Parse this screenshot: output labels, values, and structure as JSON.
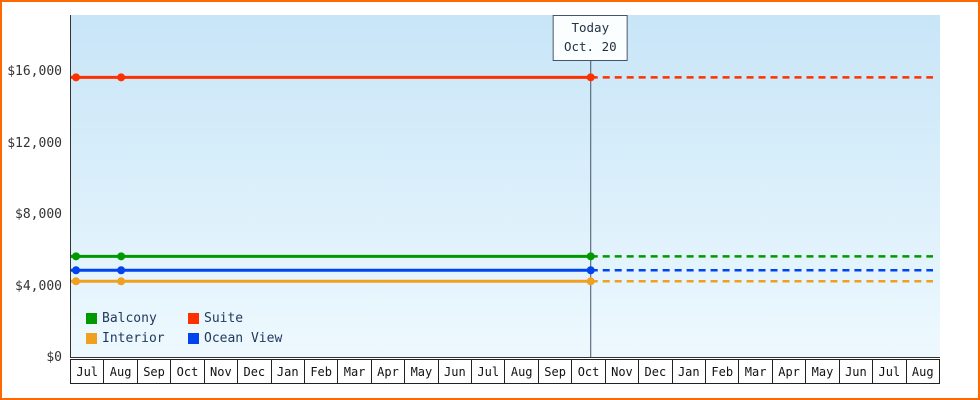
{
  "colors": {
    "frame_border": "#ff6a00",
    "axis": "#333333",
    "plot_gradient_top": "#c8e5f7",
    "plot_gradient_bottom": "#eef9fe",
    "today_line": "#445566",
    "tick_label_text": "#333333",
    "month_text": "#111111",
    "legend_text": "#223a5e"
  },
  "chart_data": {
    "type": "line",
    "title": "",
    "xlabel": "",
    "ylabel": "",
    "x_categories": [
      "Jul",
      "Aug",
      "Sep",
      "Oct",
      "Nov",
      "Dec",
      "Jan",
      "Feb",
      "Mar",
      "Apr",
      "May",
      "Jun",
      "Jul",
      "Aug",
      "Sep",
      "Oct",
      "Nov",
      "Dec",
      "Jan",
      "Feb",
      "Mar",
      "Apr",
      "May",
      "Jun",
      "Jul",
      "Aug"
    ],
    "y_ticks": [
      0,
      4000,
      8000,
      12000,
      16000
    ],
    "y_tick_labels": [
      "$0",
      "$4,000",
      "$8,000",
      "$12,000",
      "$16,000"
    ],
    "ylim": [
      0,
      19200
    ],
    "grid": false,
    "today": {
      "label": "Today",
      "date": "Oct. 20",
      "month_index": 15.55
    },
    "marker_month_indices": [
      0.15,
      1.5
    ],
    "series": [
      {
        "name": "Suite",
        "color": "#ff3000",
        "value": 15700,
        "history_style": "solid",
        "forecast_style": "dashed"
      },
      {
        "name": "Balcony",
        "color": "#009900",
        "value": 5650,
        "history_style": "solid",
        "forecast_style": "dashed"
      },
      {
        "name": "Ocean View",
        "color": "#0044ee",
        "value": 4870,
        "history_style": "solid",
        "forecast_style": "dashed"
      },
      {
        "name": "Interior",
        "color": "#f0a020",
        "value": 4250,
        "history_style": "solid",
        "forecast_style": "dashed"
      }
    ],
    "legend": {
      "position": "bottom-left",
      "items": [
        "Balcony",
        "Suite",
        "Interior",
        "Ocean View"
      ]
    }
  }
}
